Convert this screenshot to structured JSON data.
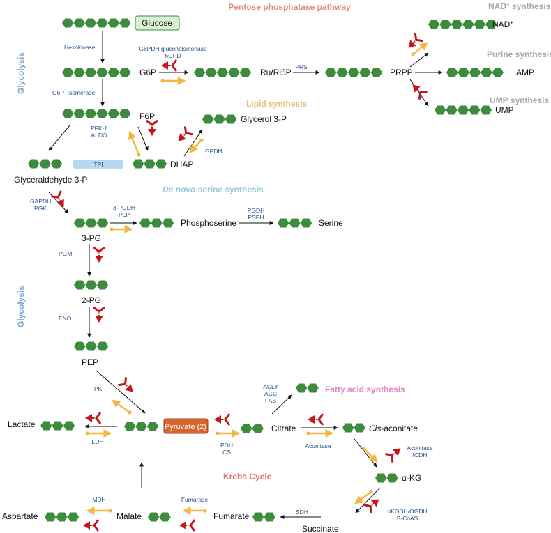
{
  "colors": {
    "hexagon": "#3d8b3d",
    "enzyme_text": "#1f4e8c",
    "pentose_title": "#e08a8a",
    "gray_title": "#a8a8a8",
    "lipid_title": "#e8c080",
    "serine_title": "#9ac8d8",
    "fatty_title": "#e087c8",
    "krebs_title": "#e07070",
    "glycolysis_side": "#7ba8d0",
    "inhibitor": "#c4161c",
    "activator": "#f0b840",
    "glucose_box": "#d9f0d3",
    "tpi_box": "#b8d8f0",
    "pyruvate_box": "#d8642e"
  },
  "sections": {
    "pentose": "Pentose phosphatase pathway",
    "nad_synthesis_main": "NAD",
    "nad_synthesis_sup": "+",
    "nad_synthesis_rest": " synthesis",
    "purine": "Purine synthesis",
    "ump_synthesis": "UMP synthesis",
    "lipid": "Lipid synthesis",
    "serine_italic": "De novo",
    "serine_rest": " serine synthesis",
    "fatty_acid": "Fatty acid synthesis",
    "krebs": "Krebs Cycle",
    "glycolysis_top": "Glycolysis",
    "glycolysis_mid": "Glycolysis"
  },
  "metabolites": {
    "glucose": "Glucose",
    "g6p": "G6P",
    "ru_ri5p": "Ru/Ri5P",
    "prpp": "PRPP",
    "nad_main": "NAD",
    "nad_sup": "+",
    "amp": "AMP",
    "ump": "UMP",
    "f6p": "F6P",
    "glycerol3p": "Glycerol 3-P",
    "dhap": "DHAP",
    "tpi": "TPI",
    "glyceraldehyde3p": "Glyceraldehyde 3-P",
    "phosphoserine": "Phosphoserine",
    "serine": "Serine",
    "pg3": "3-PG",
    "pg2": "2-PG",
    "pep": "PEP",
    "lactate": "Lactate",
    "pyruvate": "Pyruvate (2)",
    "citrate": "Citrate",
    "cis_italic": "Cis",
    "cis_rest": "-aconitate",
    "akg": "α-KG",
    "succinate": "Succinate",
    "fumarate": "Fumarate",
    "malate": "Malate",
    "aspartate": "Aspartate"
  },
  "enzymes": {
    "hexokinase": "Hexokinase",
    "g6pdh_line1": "G6PDH gluconolsctonase",
    "g6pdh_line2": "6GPD",
    "prs": "PRS",
    "g6p_isomerase": "G6P  Isomerase",
    "pfk1": "PFK-1",
    "aldo": "ALDO",
    "gpdh": "GPDH",
    "gapdh": "GAPDH",
    "pgk": "PGK",
    "pgdh3": "3-PGDH",
    "plp": "PLP",
    "pgdh": "PGDH",
    "psph": "PSPH",
    "pgm": "PGM",
    "eno": "ENO",
    "pk": "PK",
    "ldh": "LDH",
    "pdh": "PDH",
    "cs": "CS",
    "acly": "ACLY",
    "acc": "ACC",
    "fas": "FAS",
    "aconitase": "Aconitase",
    "aconitase2": "Aconitase",
    "icdh": "ICDH",
    "akgdh": "αKGDH/OGDH",
    "scoas": "S-CoAS",
    "sdh": "SDH",
    "fumarase": "Fumarase",
    "mdh": "MDH"
  }
}
